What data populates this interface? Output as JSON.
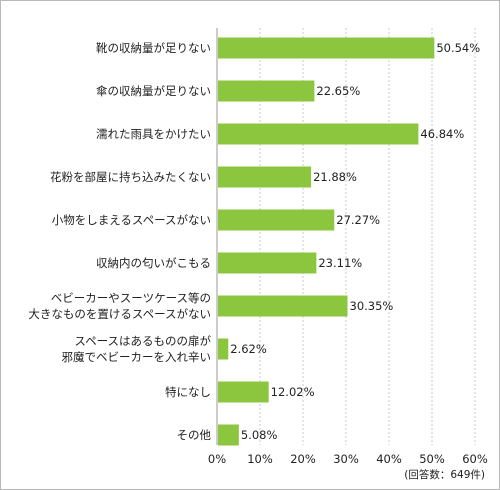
{
  "chart_data": {
    "type": "bar",
    "orientation": "horizontal",
    "categories": [
      [
        "靴の収納量が足りない"
      ],
      [
        "傘の収納量が足りない"
      ],
      [
        "濡れた雨具をかけたい"
      ],
      [
        "花粉を部屋に持ち込みたくない"
      ],
      [
        "小物をしまえるスペースがない"
      ],
      [
        "収納内の匂いがこもる"
      ],
      [
        "ベビーカーやスーツケース等の",
        "大きなものを置けるスペースがない"
      ],
      [
        "スペースはあるものの扉が",
        "邪魔でベビーカーを入れ辛い"
      ],
      [
        "特になし"
      ],
      [
        "その他"
      ]
    ],
    "values": [
      50.54,
      22.65,
      46.84,
      21.88,
      27.27,
      23.11,
      30.35,
      2.62,
      12.02,
      5.08
    ],
    "value_labels": [
      "50.54%",
      "22.65%",
      "46.84%",
      "21.88%",
      "27.27%",
      "23.11%",
      "30.35%",
      "2.62%",
      "12.02%",
      "5.08%"
    ],
    "xlim": [
      0,
      60
    ],
    "x_ticks": [
      0,
      10,
      20,
      30,
      40,
      50,
      60
    ],
    "x_tick_labels": [
      "0%",
      "10%",
      "20%",
      "30%",
      "40%",
      "50%",
      "60%"
    ],
    "note": "(回答数：649件)",
    "grid": "vertical dotted",
    "bar_color": "#8cc63f"
  }
}
